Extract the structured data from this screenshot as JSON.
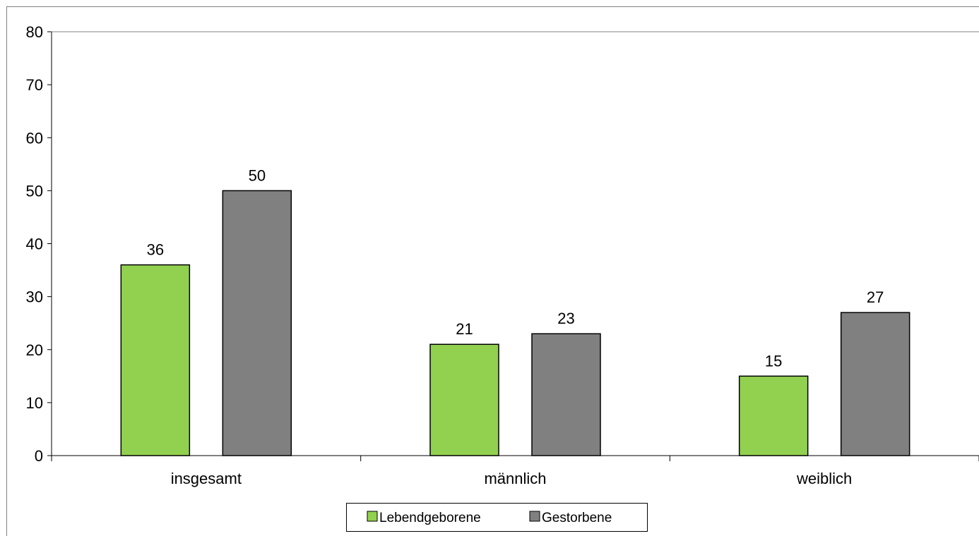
{
  "chart_data": {
    "type": "bar",
    "categories": [
      "insgesamt",
      "männlich",
      "weiblich"
    ],
    "series": [
      {
        "name": "Lebendgeborene",
        "values": [
          36,
          21,
          15
        ],
        "color": "#92d050"
      },
      {
        "name": "Gestorbene",
        "values": [
          50,
          23,
          27
        ],
        "color": "#808080"
      }
    ],
    "ylim": [
      0,
      80
    ],
    "yticks": [
      0,
      10,
      20,
      30,
      40,
      50,
      60,
      70,
      80
    ],
    "grid": false,
    "legend_position": "bottom",
    "data_labels": true
  }
}
